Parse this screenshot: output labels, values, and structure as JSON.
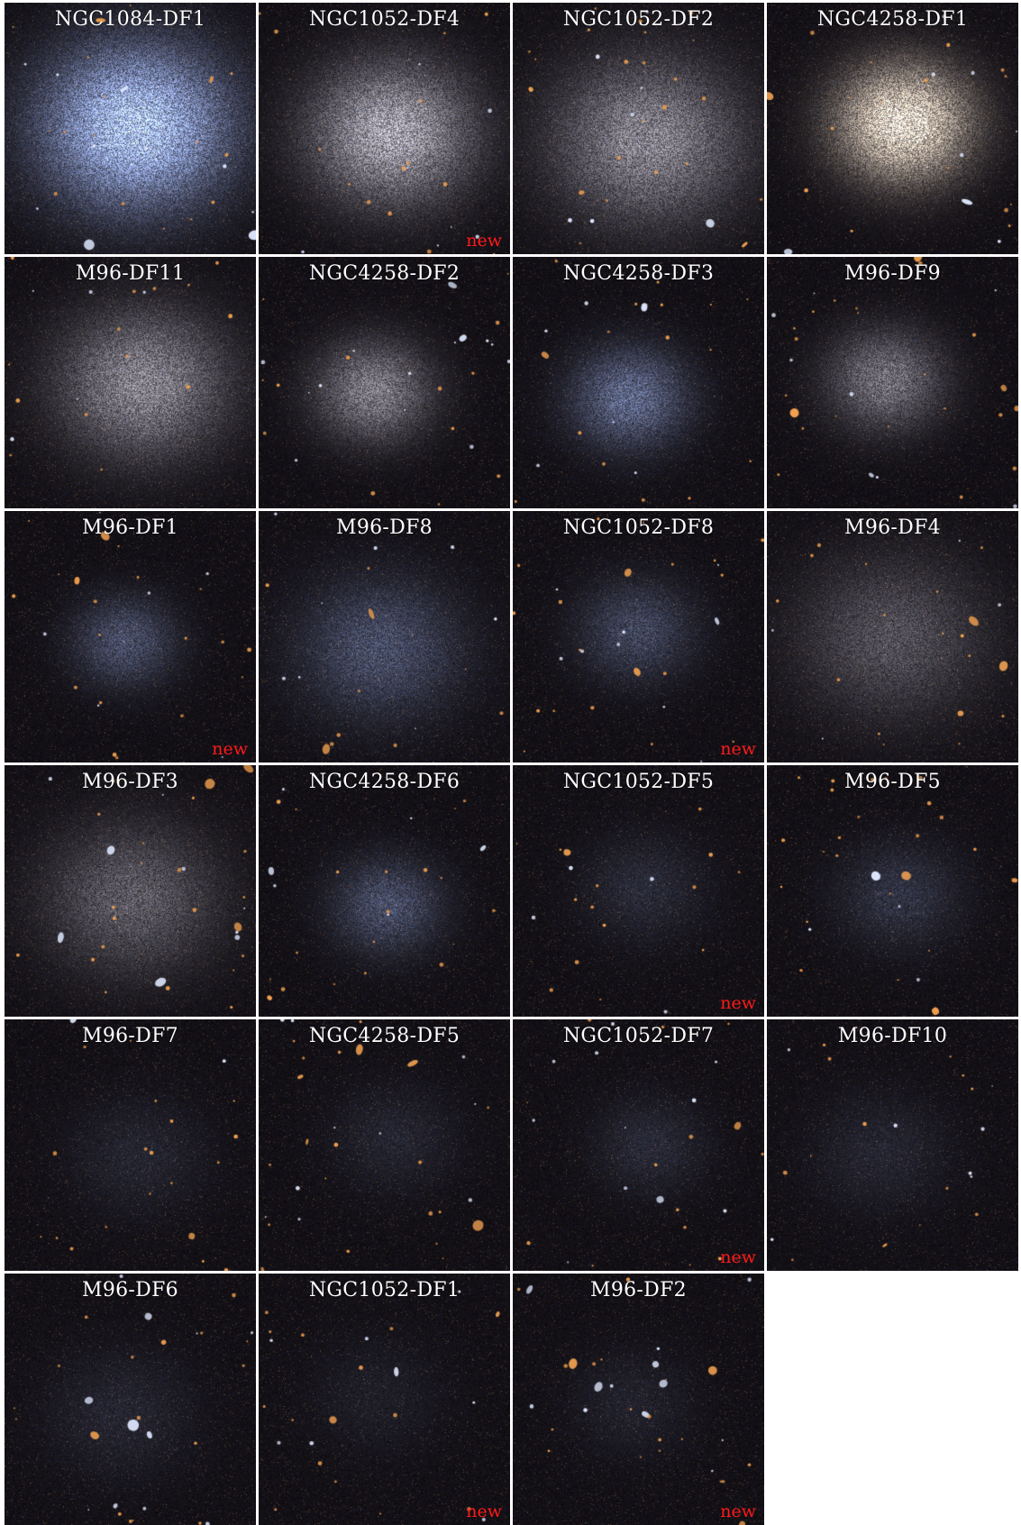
{
  "panels": [
    {
      "name": "NGC1084-DF1",
      "new": false,
      "bright": 1.0,
      "size": 1.0,
      "tint": "blue"
    },
    {
      "name": "NGC1052-DF4",
      "new": true,
      "bright": 0.7,
      "size": 0.8,
      "tint": "white"
    },
    {
      "name": "NGC1052-DF2",
      "new": false,
      "bright": 0.55,
      "size": 1.0,
      "tint": "white"
    },
    {
      "name": "NGC4258-DF1",
      "new": false,
      "bright": 0.9,
      "size": 0.6,
      "tint": "cream"
    },
    {
      "name": "M96-DF11",
      "new": false,
      "bright": 0.55,
      "size": 0.85,
      "tint": "white"
    },
    {
      "name": "NGC4258-DF2",
      "new": false,
      "bright": 0.5,
      "size": 0.45,
      "tint": "white"
    },
    {
      "name": "NGC4258-DF3",
      "new": false,
      "bright": 0.5,
      "size": 0.45,
      "tint": "blue"
    },
    {
      "name": "M96-DF9",
      "new": false,
      "bright": 0.45,
      "size": 0.45,
      "tint": "white"
    },
    {
      "name": "M96-DF1",
      "new": true,
      "bright": 0.35,
      "size": 0.35,
      "tint": "blue"
    },
    {
      "name": "M96-DF8",
      "new": false,
      "bright": 0.35,
      "size": 0.8,
      "tint": "blue"
    },
    {
      "name": "NGC1052-DF8",
      "new": true,
      "bright": 0.3,
      "size": 0.45,
      "tint": "blue"
    },
    {
      "name": "M96-DF4",
      "new": false,
      "bright": 0.3,
      "size": 1.0,
      "tint": "white"
    },
    {
      "name": "M96-DF3",
      "new": false,
      "bright": 0.35,
      "size": 0.9,
      "tint": "white"
    },
    {
      "name": "NGC4258-DF6",
      "new": false,
      "bright": 0.35,
      "size": 0.4,
      "tint": "blue"
    },
    {
      "name": "NGC1052-DF5",
      "new": true,
      "bright": 0.15,
      "size": 0.5,
      "tint": "blue"
    },
    {
      "name": "M96-DF5",
      "new": false,
      "bright": 0.2,
      "size": 0.5,
      "tint": "blue"
    },
    {
      "name": "M96-DF7",
      "new": false,
      "bright": 0.12,
      "size": 0.6,
      "tint": "blue"
    },
    {
      "name": "NGC4258-DF5",
      "new": false,
      "bright": 0.12,
      "size": 0.5,
      "tint": "blue"
    },
    {
      "name": "NGC1052-DF7",
      "new": true,
      "bright": 0.15,
      "size": 0.4,
      "tint": "blue"
    },
    {
      "name": "M96-DF10",
      "new": false,
      "bright": 0.12,
      "size": 0.6,
      "tint": "blue"
    },
    {
      "name": "M96-DF6",
      "new": false,
      "bright": 0.12,
      "size": 0.7,
      "tint": "blue"
    },
    {
      "name": "NGC1052-DF1",
      "new": true,
      "bright": 0.08,
      "size": 0.6,
      "tint": "blue"
    },
    {
      "name": "M96-DF2",
      "new": true,
      "bright": 0.1,
      "size": 0.5,
      "tint": "blue"
    }
  ],
  "new_label": "new",
  "colors": {
    "background": "#ffffff",
    "panel_bg": "#0b0a0b",
    "title_text": "#ffffff",
    "new_text": "#ff1a1a",
    "star_orange": "#f0a050",
    "galaxy_blue": "#a8c4ff"
  }
}
